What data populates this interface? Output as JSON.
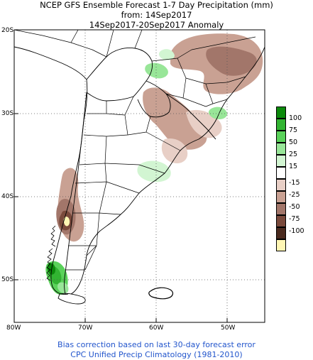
{
  "header": {
    "line1": "NCEP GFS Ensemble Forecast 1-7 Day Precipitation (mm)",
    "line2": "from: 14Sep2017",
    "line3": "14Sep2017-20Sep2017 Anomaly"
  },
  "axes": {
    "lat_labels": [
      "20S",
      "30S",
      "40S",
      "50S"
    ],
    "lon_labels": [
      "80W",
      "70W",
      "60W",
      "50W"
    ]
  },
  "legend": {
    "items": [
      {
        "label": "100",
        "color": "#0c8a0c"
      },
      {
        "label": "75",
        "color": "#32b432"
      },
      {
        "label": "50",
        "color": "#5ad25a"
      },
      {
        "label": "25",
        "color": "#98e698"
      },
      {
        "label": "15",
        "color": "#d2f5d2"
      },
      {
        "label": "",
        "color": "#ffffff"
      },
      {
        "label": "-15",
        "color": "#e8cfc6"
      },
      {
        "label": "-25",
        "color": "#c9a193"
      },
      {
        "label": "-50",
        "color": "#a2766a"
      },
      {
        "label": "-75",
        "color": "#7a4a3c"
      },
      {
        "label": "-100",
        "color": "#4a2a1e"
      },
      {
        "label": "",
        "color": "#fff6b4"
      }
    ]
  },
  "footer": {
    "line1": "Bias correction based on last 30-day forecast error",
    "line2": "CPC Unified Precip Climatology (1981-2010)"
  }
}
